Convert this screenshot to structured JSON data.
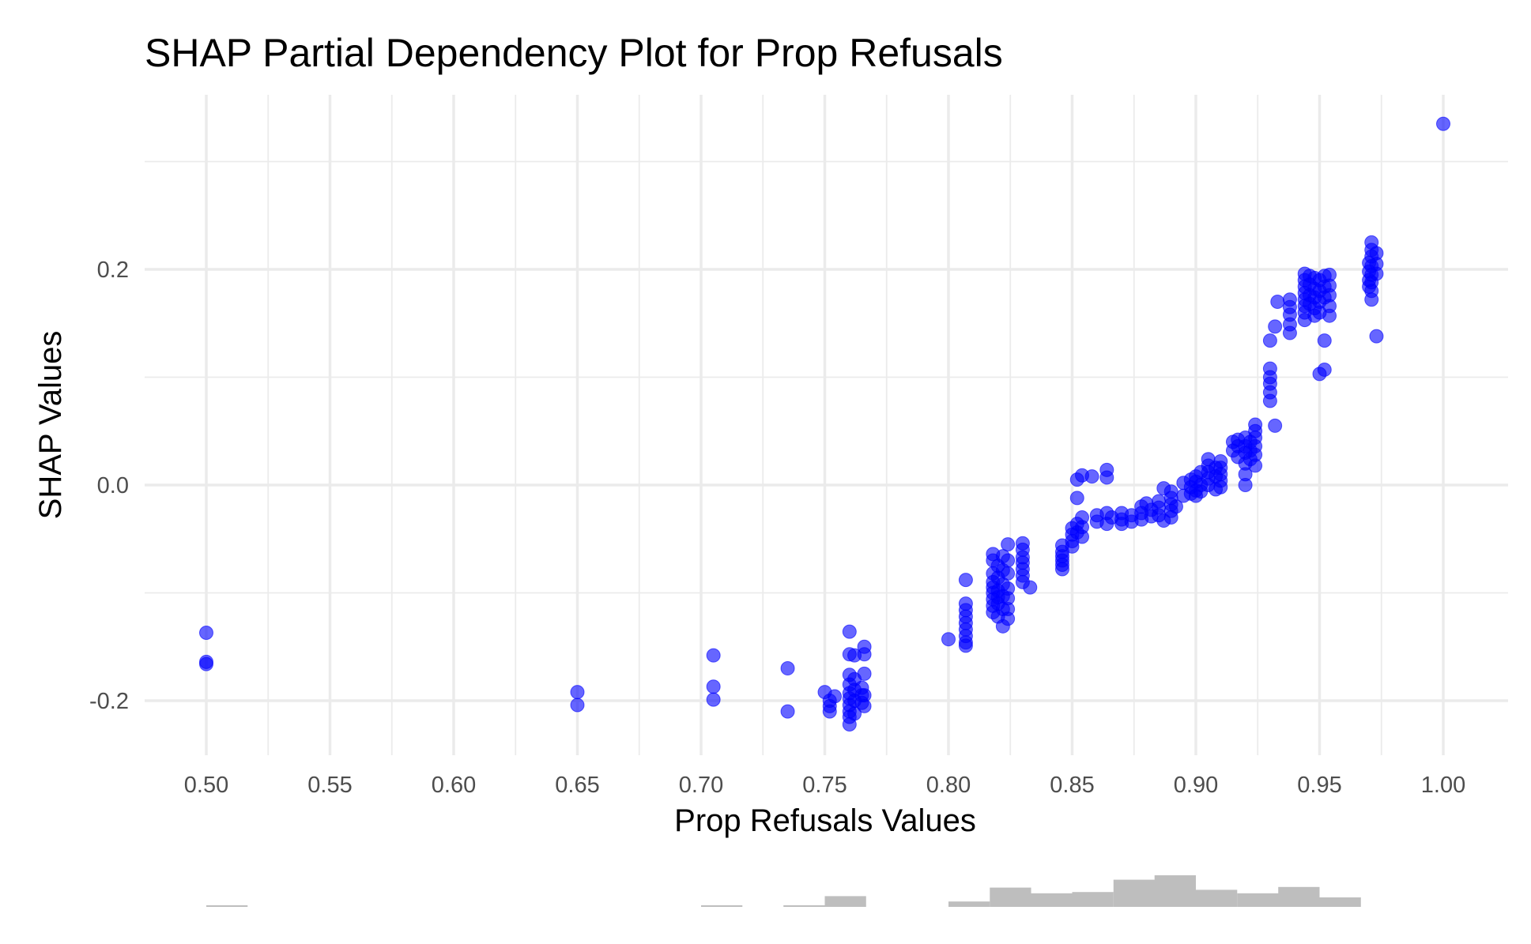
{
  "chart_data": {
    "type": "scatter",
    "title": "SHAP Partial Dependency Plot for Prop Refusals",
    "xlabel": "Prop Refusals Values",
    "ylabel": "SHAP Values",
    "xlim": [
      0.475,
      1.025
    ],
    "ylim": [
      -0.245,
      0.36
    ],
    "x_ticks": [
      0.5,
      0.55,
      0.6,
      0.65,
      0.7,
      0.75,
      0.8,
      0.85,
      0.9,
      0.95,
      1.0
    ],
    "x_tick_labels": [
      "0.50",
      "0.55",
      "0.60",
      "0.65",
      "0.70",
      "0.75",
      "0.80",
      "0.85",
      "0.90",
      "0.95",
      "1.00"
    ],
    "y_ticks": [
      -0.2,
      0.0,
      0.2
    ],
    "y_tick_labels": [
      "-0.2",
      "0.0",
      "0.2"
    ],
    "y_minor_ticks": [
      -0.1,
      0.1,
      0.3
    ],
    "grid": true,
    "legend": "none",
    "colors": {
      "points": "#0000ff",
      "histogram": "#bebebe",
      "grid": "#ebebeb"
    },
    "points": [
      [
        0.5,
        -0.137
      ],
      [
        0.5,
        -0.164
      ],
      [
        0.5,
        -0.166
      ],
      [
        0.65,
        -0.192
      ],
      [
        0.65,
        -0.204
      ],
      [
        0.705,
        -0.158
      ],
      [
        0.705,
        -0.187
      ],
      [
        0.705,
        -0.199
      ],
      [
        0.735,
        -0.17
      ],
      [
        0.735,
        -0.21
      ],
      [
        0.75,
        -0.192
      ],
      [
        0.752,
        -0.2
      ],
      [
        0.752,
        -0.205
      ],
      [
        0.752,
        -0.21
      ],
      [
        0.754,
        -0.196
      ],
      [
        0.76,
        -0.136
      ],
      [
        0.76,
        -0.157
      ],
      [
        0.76,
        -0.176
      ],
      [
        0.76,
        -0.185
      ],
      [
        0.76,
        -0.193
      ],
      [
        0.76,
        -0.198
      ],
      [
        0.76,
        -0.204
      ],
      [
        0.76,
        -0.21
      ],
      [
        0.76,
        -0.215
      ],
      [
        0.76,
        -0.222
      ],
      [
        0.762,
        -0.158
      ],
      [
        0.762,
        -0.18
      ],
      [
        0.762,
        -0.19
      ],
      [
        0.762,
        -0.2
      ],
      [
        0.762,
        -0.212
      ],
      [
        0.765,
        -0.188
      ],
      [
        0.765,
        -0.195
      ],
      [
        0.765,
        -0.202
      ],
      [
        0.766,
        -0.15
      ],
      [
        0.766,
        -0.157
      ],
      [
        0.766,
        -0.175
      ],
      [
        0.766,
        -0.195
      ],
      [
        0.766,
        -0.205
      ],
      [
        0.8,
        -0.143
      ],
      [
        0.807,
        -0.088
      ],
      [
        0.807,
        -0.11
      ],
      [
        0.807,
        -0.116
      ],
      [
        0.807,
        -0.122
      ],
      [
        0.807,
        -0.128
      ],
      [
        0.807,
        -0.134
      ],
      [
        0.807,
        -0.14
      ],
      [
        0.807,
        -0.146
      ],
      [
        0.807,
        -0.149
      ],
      [
        0.818,
        -0.064
      ],
      [
        0.818,
        -0.07
      ],
      [
        0.818,
        -0.082
      ],
      [
        0.818,
        -0.09
      ],
      [
        0.818,
        -0.095
      ],
      [
        0.818,
        -0.1
      ],
      [
        0.818,
        -0.106
      ],
      [
        0.818,
        -0.112
      ],
      [
        0.818,
        -0.118
      ],
      [
        0.82,
        -0.075
      ],
      [
        0.82,
        -0.086
      ],
      [
        0.82,
        -0.098
      ],
      [
        0.82,
        -0.104
      ],
      [
        0.82,
        -0.11
      ],
      [
        0.82,
        -0.122
      ],
      [
        0.822,
        -0.066
      ],
      [
        0.822,
        -0.079
      ],
      [
        0.822,
        -0.092
      ],
      [
        0.822,
        -0.103
      ],
      [
        0.822,
        -0.115
      ],
      [
        0.822,
        -0.131
      ],
      [
        0.824,
        -0.055
      ],
      [
        0.824,
        -0.07
      ],
      [
        0.824,
        -0.082
      ],
      [
        0.824,
        -0.096
      ],
      [
        0.824,
        -0.105
      ],
      [
        0.824,
        -0.115
      ],
      [
        0.824,
        -0.124
      ],
      [
        0.83,
        -0.054
      ],
      [
        0.83,
        -0.06
      ],
      [
        0.83,
        -0.067
      ],
      [
        0.83,
        -0.072
      ],
      [
        0.83,
        -0.078
      ],
      [
        0.83,
        -0.084
      ],
      [
        0.83,
        -0.09
      ],
      [
        0.833,
        -0.095
      ],
      [
        0.846,
        -0.056
      ],
      [
        0.846,
        -0.062
      ],
      [
        0.846,
        -0.066
      ],
      [
        0.846,
        -0.07
      ],
      [
        0.846,
        -0.074
      ],
      [
        0.846,
        -0.078
      ],
      [
        0.85,
        -0.04
      ],
      [
        0.85,
        -0.046
      ],
      [
        0.85,
        -0.052
      ],
      [
        0.85,
        -0.057
      ],
      [
        0.852,
        0.005
      ],
      [
        0.852,
        -0.012
      ],
      [
        0.852,
        -0.036
      ],
      [
        0.852,
        -0.044
      ],
      [
        0.854,
        0.009
      ],
      [
        0.854,
        -0.03
      ],
      [
        0.854,
        -0.039
      ],
      [
        0.854,
        -0.048
      ],
      [
        0.858,
        0.008
      ],
      [
        0.86,
        -0.028
      ],
      [
        0.86,
        -0.034
      ],
      [
        0.864,
        0.007
      ],
      [
        0.864,
        0.014
      ],
      [
        0.864,
        -0.026
      ],
      [
        0.864,
        -0.036
      ],
      [
        0.866,
        -0.03
      ],
      [
        0.87,
        -0.026
      ],
      [
        0.87,
        -0.032
      ],
      [
        0.87,
        -0.036
      ],
      [
        0.874,
        -0.028
      ],
      [
        0.874,
        -0.034
      ],
      [
        0.878,
        -0.02
      ],
      [
        0.878,
        -0.026
      ],
      [
        0.878,
        -0.032
      ],
      [
        0.88,
        -0.017
      ],
      [
        0.882,
        -0.023
      ],
      [
        0.882,
        -0.029
      ],
      [
        0.885,
        -0.015
      ],
      [
        0.885,
        -0.021
      ],
      [
        0.885,
        -0.028
      ],
      [
        0.887,
        -0.003
      ],
      [
        0.887,
        -0.033
      ],
      [
        0.89,
        -0.006
      ],
      [
        0.89,
        -0.012
      ],
      [
        0.89,
        -0.018
      ],
      [
        0.89,
        -0.024
      ],
      [
        0.89,
        -0.03
      ],
      [
        0.892,
        -0.02
      ],
      [
        0.895,
        0.002
      ],
      [
        0.895,
        -0.01
      ],
      [
        0.898,
        0.005
      ],
      [
        0.898,
        -0.002
      ],
      [
        0.898,
        -0.008
      ],
      [
        0.9,
        0.008
      ],
      [
        0.9,
        0.003
      ],
      [
        0.9,
        -0.005
      ],
      [
        0.9,
        -0.01
      ],
      [
        0.902,
        0.012
      ],
      [
        0.902,
        0.0
      ],
      [
        0.902,
        -0.006
      ],
      [
        0.905,
        0.024
      ],
      [
        0.905,
        0.018
      ],
      [
        0.905,
        0.012
      ],
      [
        0.905,
        0.006
      ],
      [
        0.905,
        0.0
      ],
      [
        0.908,
        0.016
      ],
      [
        0.908,
        0.008
      ],
      [
        0.908,
        -0.004
      ],
      [
        0.91,
        0.022
      ],
      [
        0.91,
        0.016
      ],
      [
        0.91,
        0.01
      ],
      [
        0.91,
        0.004
      ],
      [
        0.91,
        -0.002
      ],
      [
        0.915,
        0.04
      ],
      [
        0.915,
        0.032
      ],
      [
        0.917,
        0.042
      ],
      [
        0.917,
        0.036
      ],
      [
        0.917,
        0.026
      ],
      [
        0.92,
        0.044
      ],
      [
        0.92,
        0.036
      ],
      [
        0.92,
        0.03
      ],
      [
        0.92,
        0.02
      ],
      [
        0.92,
        0.01
      ],
      [
        0.92,
        0.0
      ],
      [
        0.922,
        0.04
      ],
      [
        0.922,
        0.032
      ],
      [
        0.922,
        0.024
      ],
      [
        0.924,
        0.056
      ],
      [
        0.924,
        0.05
      ],
      [
        0.924,
        0.044
      ],
      [
        0.924,
        0.036
      ],
      [
        0.924,
        0.028
      ],
      [
        0.924,
        0.018
      ],
      [
        0.93,
        0.134
      ],
      [
        0.93,
        0.108
      ],
      [
        0.93,
        0.1
      ],
      [
        0.93,
        0.094
      ],
      [
        0.93,
        0.086
      ],
      [
        0.93,
        0.078
      ],
      [
        0.932,
        0.147
      ],
      [
        0.932,
        0.055
      ],
      [
        0.933,
        0.17
      ],
      [
        0.938,
        0.172
      ],
      [
        0.938,
        0.165
      ],
      [
        0.938,
        0.158
      ],
      [
        0.938,
        0.149
      ],
      [
        0.938,
        0.141
      ],
      [
        0.944,
        0.196
      ],
      [
        0.944,
        0.19
      ],
      [
        0.944,
        0.184
      ],
      [
        0.944,
        0.178
      ],
      [
        0.944,
        0.172
      ],
      [
        0.944,
        0.166
      ],
      [
        0.944,
        0.16
      ],
      [
        0.944,
        0.153
      ],
      [
        0.946,
        0.194
      ],
      [
        0.946,
        0.186
      ],
      [
        0.946,
        0.176
      ],
      [
        0.946,
        0.168
      ],
      [
        0.948,
        0.192
      ],
      [
        0.948,
        0.182
      ],
      [
        0.948,
        0.174
      ],
      [
        0.948,
        0.164
      ],
      [
        0.948,
        0.157
      ],
      [
        0.95,
        0.19
      ],
      [
        0.95,
        0.18
      ],
      [
        0.95,
        0.17
      ],
      [
        0.95,
        0.16
      ],
      [
        0.95,
        0.103
      ],
      [
        0.952,
        0.194
      ],
      [
        0.952,
        0.184
      ],
      [
        0.952,
        0.174
      ],
      [
        0.952,
        0.134
      ],
      [
        0.952,
        0.107
      ],
      [
        0.954,
        0.195
      ],
      [
        0.954,
        0.185
      ],
      [
        0.954,
        0.176
      ],
      [
        0.954,
        0.166
      ],
      [
        0.954,
        0.157
      ],
      [
        0.97,
        0.206
      ],
      [
        0.97,
        0.198
      ],
      [
        0.97,
        0.19
      ],
      [
        0.97,
        0.184
      ],
      [
        0.971,
        0.225
      ],
      [
        0.971,
        0.218
      ],
      [
        0.971,
        0.212
      ],
      [
        0.971,
        0.203
      ],
      [
        0.971,
        0.195
      ],
      [
        0.971,
        0.188
      ],
      [
        0.971,
        0.18
      ],
      [
        0.971,
        0.172
      ],
      [
        0.973,
        0.215
      ],
      [
        0.973,
        0.205
      ],
      [
        0.973,
        0.196
      ],
      [
        0.973,
        0.138
      ],
      [
        1.0,
        0.335
      ]
    ],
    "histogram": {
      "color": "#bebebe",
      "bin_width": 0.0167,
      "bin_starts": [
        0.5,
        0.7,
        0.7333,
        0.75,
        0.8,
        0.8167,
        0.8333,
        0.85,
        0.8667,
        0.8833,
        0.9,
        0.9167,
        0.9333,
        0.95
      ],
      "heights": [
        0.03,
        0.03,
        0.03,
        0.34,
        0.17,
        0.61,
        0.43,
        0.47,
        0.86,
        1.0,
        0.54,
        0.43,
        0.63,
        0.3
      ]
    }
  }
}
